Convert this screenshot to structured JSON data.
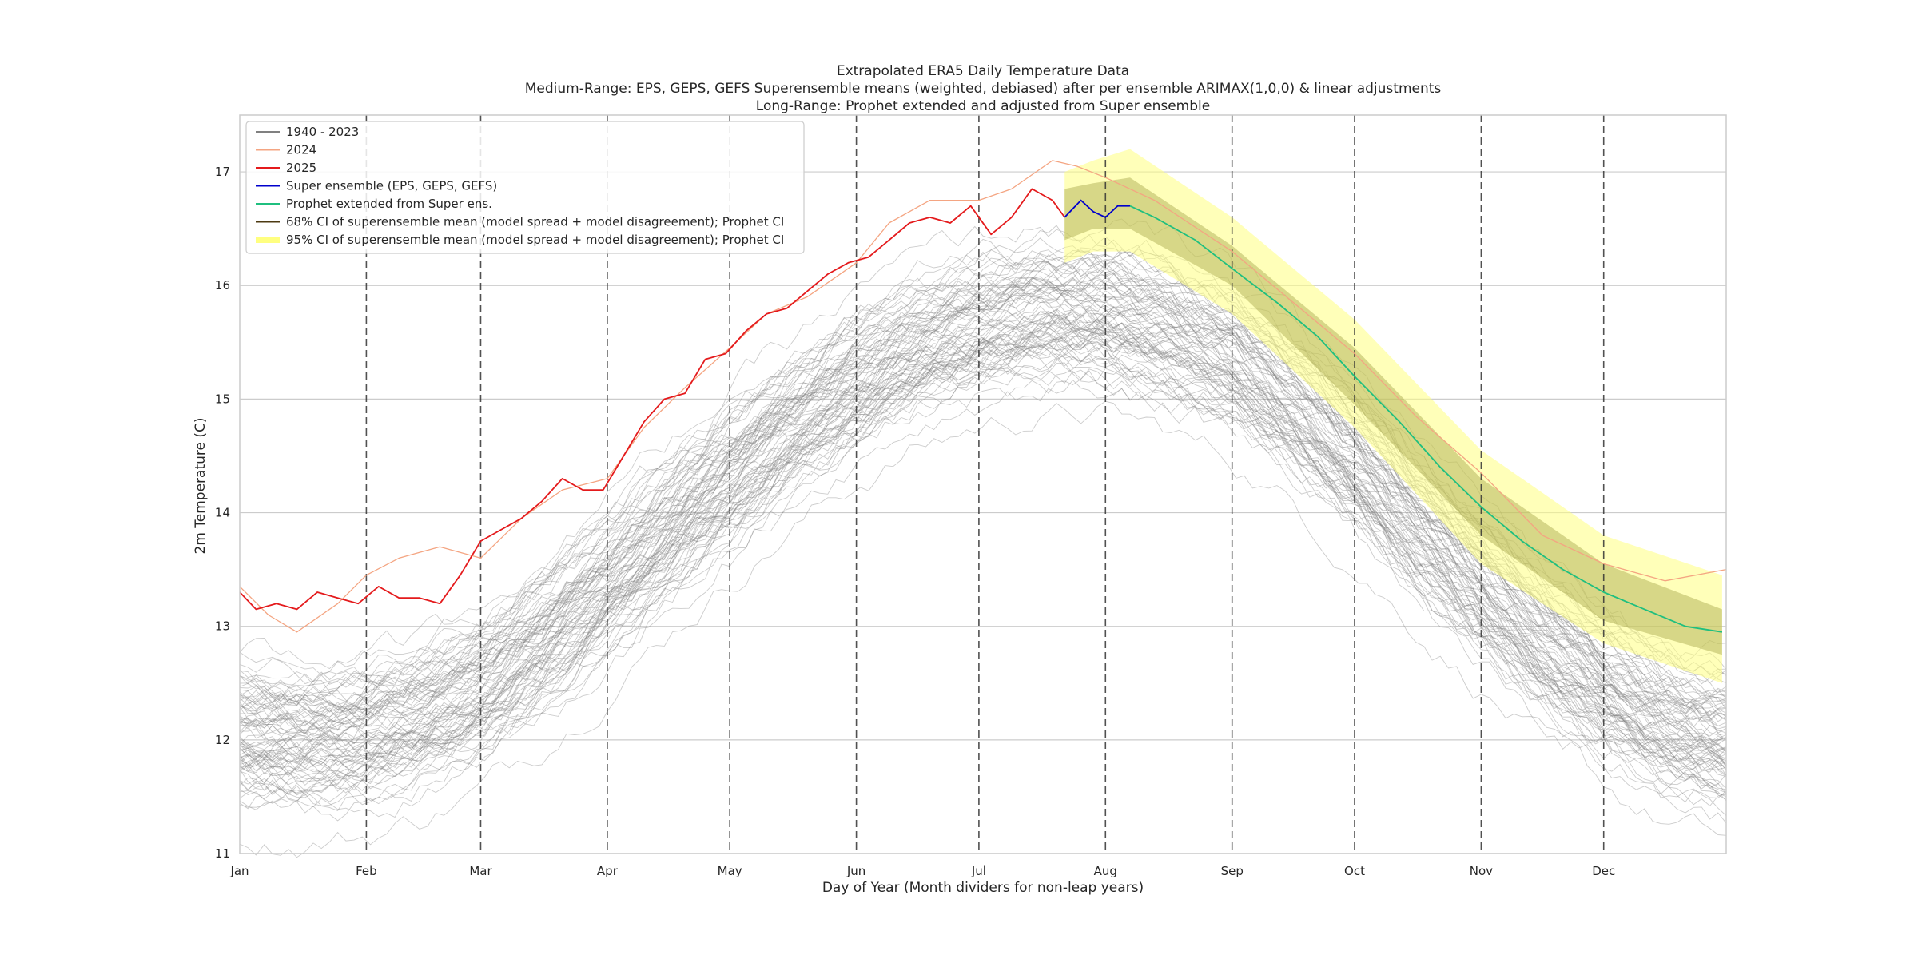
{
  "chart_data": {
    "type": "line",
    "title_lines": [
      "Extrapolated ERA5 Daily Temperature Data",
      "Medium-Range: EPS, GEPS, GEFS Superensemble means (weighted, debiased) after per ensemble ARIMAX(1,0,0) & linear adjustments",
      "Long-Range: Prophet extended and adjusted from Super ensemble"
    ],
    "xlabel": "Day of Year (Month dividers for non-leap years)",
    "ylabel": "2m Temperature (C)",
    "xlim": [
      1,
      365
    ],
    "ylim": [
      11,
      17.5
    ],
    "y_ticks": [
      11,
      12,
      13,
      14,
      15,
      16,
      17
    ],
    "x_ticks": [
      {
        "label": "Jan",
        "day": 1
      },
      {
        "label": "Feb",
        "day": 32
      },
      {
        "label": "Mar",
        "day": 60
      },
      {
        "label": "Apr",
        "day": 91
      },
      {
        "label": "May",
        "day": 121
      },
      {
        "label": "Jun",
        "day": 152
      },
      {
        "label": "Jul",
        "day": 182
      },
      {
        "label": "Aug",
        "day": 213
      },
      {
        "label": "Sep",
        "day": 244
      },
      {
        "label": "Oct",
        "day": 274
      },
      {
        "label": "Nov",
        "day": 305
      },
      {
        "label": "Dec",
        "day": 335
      }
    ],
    "month_dividers": [
      32,
      60,
      91,
      121,
      152,
      182,
      213,
      244,
      274,
      305,
      335
    ],
    "grid": "horizontal",
    "legend_position": "top-left",
    "historical_envelope": {
      "name": "1940 - 2023",
      "color": "#808080",
      "years": 84,
      "mean_days": [
        1,
        15,
        32,
        45,
        60,
        75,
        91,
        106,
        121,
        136,
        152,
        167,
        182,
        197,
        213,
        228,
        244,
        259,
        274,
        289,
        305,
        320,
        335,
        350,
        365
      ],
      "mean_values": [
        12.05,
        12.0,
        12.05,
        12.2,
        12.45,
        12.85,
        13.35,
        13.85,
        14.3,
        14.75,
        15.15,
        15.45,
        15.65,
        15.75,
        15.75,
        15.6,
        15.35,
        14.95,
        14.45,
        13.9,
        13.35,
        12.85,
        12.45,
        12.15,
        12.0
      ],
      "spread": 0.75
    },
    "series": [
      {
        "name": "2024",
        "color": "#f4a582",
        "days": [
          1,
          8,
          15,
          25,
          32,
          40,
          50,
          60,
          70,
          80,
          91,
          100,
          110,
          121,
          130,
          140,
          152,
          160,
          170,
          182,
          190,
          200,
          206,
          213,
          225,
          244,
          259,
          274,
          289,
          305,
          320,
          335,
          350,
          365
        ],
        "values": [
          13.35,
          13.1,
          12.95,
          13.2,
          13.45,
          13.6,
          13.7,
          13.6,
          13.95,
          14.2,
          14.3,
          14.75,
          15.1,
          15.45,
          15.75,
          15.9,
          16.2,
          16.55,
          16.75,
          16.75,
          16.85,
          17.1,
          17.05,
          16.95,
          16.75,
          16.3,
          15.85,
          15.4,
          14.85,
          14.35,
          13.8,
          13.55,
          13.4,
          13.5
        ]
      },
      {
        "name": "2025",
        "color": "#e41a1c",
        "days": [
          1,
          5,
          10,
          15,
          20,
          25,
          30,
          35,
          40,
          45,
          50,
          55,
          60,
          65,
          70,
          75,
          80,
          85,
          90,
          95,
          100,
          105,
          110,
          115,
          120,
          125,
          130,
          135,
          140,
          145,
          150,
          155,
          160,
          165,
          170,
          175,
          180,
          185,
          190,
          195,
          200,
          203
        ],
        "values": [
          13.3,
          13.15,
          13.2,
          13.15,
          13.3,
          13.25,
          13.2,
          13.35,
          13.25,
          13.25,
          13.2,
          13.45,
          13.75,
          13.85,
          13.95,
          14.1,
          14.3,
          14.2,
          14.2,
          14.5,
          14.8,
          15.0,
          15.05,
          15.35,
          15.4,
          15.6,
          15.75,
          15.8,
          15.95,
          16.1,
          16.2,
          16.25,
          16.4,
          16.55,
          16.6,
          16.55,
          16.7,
          16.45,
          16.6,
          16.85,
          16.75,
          16.6
        ]
      },
      {
        "name": "Super ensemble (EPS, GEPS, GEFS)",
        "color": "#0000cc",
        "days": [
          203,
          207,
          210,
          213,
          216,
          219
        ],
        "values": [
          16.6,
          16.75,
          16.65,
          16.6,
          16.7,
          16.7
        ]
      },
      {
        "name": "Prophet extended from Super ens.",
        "color": "#1fbf7f",
        "days": [
          219,
          225,
          235,
          244,
          255,
          265,
          274,
          285,
          295,
          305,
          315,
          325,
          335,
          345,
          355,
          364
        ],
        "values": [
          16.7,
          16.6,
          16.4,
          16.15,
          15.85,
          15.55,
          15.2,
          14.8,
          14.4,
          14.05,
          13.75,
          13.5,
          13.3,
          13.15,
          13.0,
          12.95
        ]
      }
    ],
    "confidence_bands": [
      {
        "name": "95% CI of superensemble mean (model spread + model disagreement); Prophet CI",
        "color": "#ffff80",
        "opacity": 0.55,
        "days": [
          203,
          210,
          219,
          244,
          274,
          305,
          335,
          364
        ],
        "lower": [
          16.2,
          16.3,
          16.3,
          15.75,
          14.75,
          13.55,
          12.85,
          12.5
        ],
        "upper": [
          17.0,
          17.1,
          17.2,
          16.6,
          15.7,
          14.55,
          13.8,
          13.45
        ]
      },
      {
        "name": "68% CI of superensemble mean (model spread + model disagreement); Prophet CI",
        "color": "#8c8c2a",
        "opacity": 0.35,
        "days": [
          203,
          210,
          219,
          244,
          274,
          305,
          335,
          364
        ],
        "lower": [
          16.4,
          16.5,
          16.5,
          16.0,
          14.95,
          13.8,
          13.05,
          12.75
        ],
        "upper": [
          16.85,
          16.9,
          16.95,
          16.35,
          15.45,
          14.3,
          13.55,
          13.15
        ]
      }
    ],
    "legend": [
      {
        "label": "1940 - 2023",
        "color": "#808080",
        "kind": "line"
      },
      {
        "label": "2024",
        "color": "#f4a582",
        "kind": "line"
      },
      {
        "label": "2025",
        "color": "#e41a1c",
        "kind": "line"
      },
      {
        "label": "Super ensemble (EPS, GEPS, GEFS)",
        "color": "#0000cc",
        "kind": "line"
      },
      {
        "label": "Prophet extended from Super ens.",
        "color": "#1fbf7f",
        "kind": "line"
      },
      {
        "label": "68% CI of superensemble mean (model spread + model disagreement); Prophet CI",
        "color": "#4d3a12",
        "kind": "line"
      },
      {
        "label": "95% CI of superensemble mean (model spread + model disagreement); Prophet CI",
        "color": "#ffff80",
        "kind": "band"
      }
    ]
  }
}
